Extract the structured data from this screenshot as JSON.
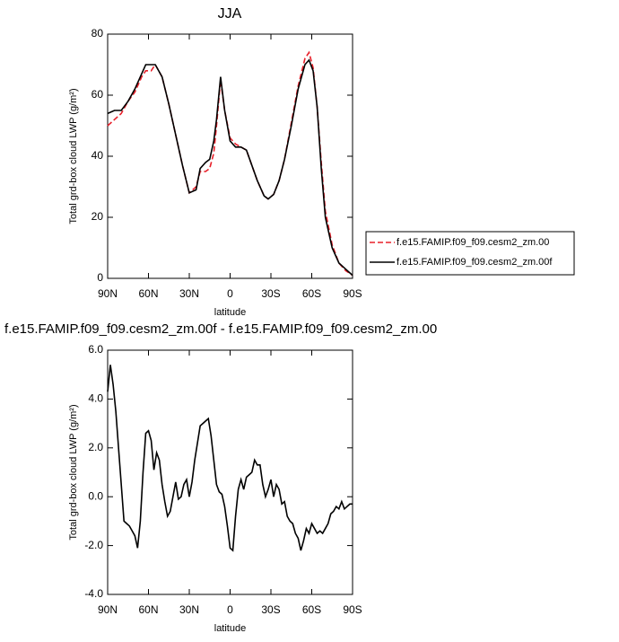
{
  "chart_data": [
    {
      "type": "line",
      "title": "JJA",
      "xlabel": "latitude",
      "ylabel": "Total grd-box cloud LWP (g/m²)",
      "xlim": [
        90,
        -90
      ],
      "ylim": [
        0,
        80
      ],
      "xticks": [
        {
          "value": 90,
          "label": "90N"
        },
        {
          "value": 60,
          "label": "60N"
        },
        {
          "value": 30,
          "label": "30N"
        },
        0,
        {
          "value": -30,
          "label": "30S"
        },
        {
          "value": -60,
          "label": "60S"
        },
        {
          "value": -90,
          "label": "90S"
        }
      ],
      "yticks": [
        0,
        20,
        40,
        60,
        80
      ],
      "legend": "outside-right",
      "x": [
        90,
        85,
        80,
        75,
        70,
        65,
        62,
        58,
        55,
        50,
        45,
        40,
        35,
        30,
        25,
        22,
        18,
        15,
        12,
        10,
        7,
        4,
        0,
        -4,
        -8,
        -12,
        -16,
        -20,
        -25,
        -28,
        -32,
        -36,
        -40,
        -45,
        -50,
        -55,
        -58,
        -61,
        -64,
        -67,
        -70,
        -75,
        -80,
        -85,
        -90
      ],
      "series": [
        {
          "name": "f.e15.FAMIP.f09_f09.cesm2_zm.00",
          "color": "#e8202a",
          "line_style": "dashed",
          "values": [
            50,
            52,
            54,
            58,
            61,
            66,
            68,
            68,
            70,
            66,
            57,
            47,
            37,
            28,
            30,
            35,
            35,
            36,
            41,
            50,
            65,
            55,
            46,
            44,
            43,
            42,
            37,
            32,
            27,
            26,
            27.5,
            32,
            39,
            51,
            63,
            72,
            74,
            69,
            56,
            38,
            22,
            11,
            5,
            2.5,
            1
          ]
        },
        {
          "name": "f.e15.FAMIP.f09_f09.cesm2_zm.00f",
          "color": "#000000",
          "line_style": "solid",
          "values": [
            54,
            55,
            55,
            58,
            62,
            67,
            70,
            70,
            70,
            66,
            57,
            47,
            37,
            28,
            29,
            36,
            38,
            39,
            45,
            52,
            66,
            55,
            45,
            43,
            43,
            42,
            37,
            32,
            27,
            26,
            27.5,
            32,
            39,
            50,
            62,
            70,
            71.5,
            68,
            56,
            36,
            20,
            10,
            5,
            3,
            1
          ]
        }
      ]
    },
    {
      "type": "line",
      "title": "f.e15.FAMIP.f09_f09.cesm2_zm.00f - f.e15.FAMIP.f09_f09.cesm2_zm.00",
      "xlabel": "latitude",
      "ylabel": "Total grd-box cloud LWP (g/m²)",
      "xlim": [
        90,
        -90
      ],
      "ylim": [
        -4,
        6
      ],
      "xticks": [
        {
          "value": 90,
          "label": "90N"
        },
        {
          "value": 60,
          "label": "60N"
        },
        {
          "value": 30,
          "label": "30N"
        },
        0,
        {
          "value": -30,
          "label": "30S"
        },
        {
          "value": -60,
          "label": "60S"
        },
        {
          "value": -90,
          "label": "90S"
        }
      ],
      "yticks": [
        {
          "value": -4,
          "label": "-4.0"
        },
        {
          "value": -2,
          "label": "-2.0"
        },
        {
          "value": 0,
          "label": "0.0"
        },
        {
          "value": 2,
          "label": "2.0"
        },
        {
          "value": 4,
          "label": "4.0"
        },
        {
          "value": 6,
          "label": "6.0"
        }
      ],
      "color": "#000000",
      "x": [
        90,
        88,
        86,
        84,
        82,
        80,
        78,
        76,
        74,
        72,
        70,
        68,
        66,
        64,
        62,
        60,
        58,
        56,
        54,
        52,
        50,
        48,
        46,
        44,
        42,
        40,
        38,
        36,
        34,
        32,
        30,
        28,
        26,
        24,
        22,
        20,
        18,
        16,
        14,
        12,
        10,
        8,
        6,
        4,
        2,
        0,
        -2,
        -4,
        -6,
        -8,
        -10,
        -12,
        -14,
        -16,
        -18,
        -20,
        -22,
        -24,
        -26,
        -28,
        -30,
        -32,
        -34,
        -36,
        -38,
        -40,
        -42,
        -44,
        -46,
        -48,
        -50,
        -52,
        -54,
        -56,
        -58,
        -60,
        -62,
        -64,
        -66,
        -68,
        -70,
        -72,
        -74,
        -76,
        -78,
        -80,
        -82,
        -84,
        -86,
        -88,
        -90
      ],
      "values": [
        4.3,
        5.4,
        4.6,
        3.5,
        2.0,
        0.5,
        -1.0,
        -1.1,
        -1.2,
        -1.4,
        -1.6,
        -2.1,
        -1.0,
        1.0,
        2.6,
        2.7,
        2.3,
        1.1,
        1.8,
        1.5,
        0.5,
        -0.2,
        -0.8,
        -0.6,
        0.0,
        0.6,
        -0.1,
        0.0,
        0.5,
        0.7,
        0.0,
        0.6,
        1.5,
        2.2,
        2.9,
        3.0,
        3.1,
        3.2,
        2.5,
        1.5,
        0.5,
        0.2,
        0.1,
        -0.4,
        -1.2,
        -2.1,
        -2.2,
        -0.8,
        0.3,
        0.7,
        0.3,
        0.8,
        0.9,
        1.0,
        1.5,
        1.3,
        1.3,
        0.5,
        0.0,
        0.3,
        0.7,
        0.0,
        0.5,
        0.3,
        -0.3,
        -0.2,
        -0.8,
        -1.0,
        -1.1,
        -1.5,
        -1.7,
        -2.2,
        -1.8,
        -1.3,
        -1.5,
        -1.1,
        -1.3,
        -1.5,
        -1.4,
        -1.5,
        -1.3,
        -1.1,
        -0.7,
        -0.6,
        -0.4,
        -0.5,
        -0.2,
        -0.5,
        -0.4,
        -0.3,
        -0.3
      ]
    }
  ]
}
